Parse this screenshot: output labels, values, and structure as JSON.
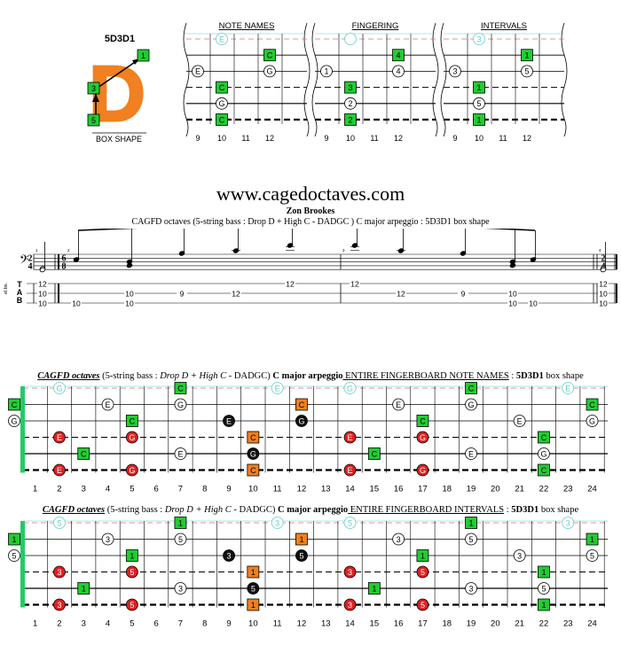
{
  "shape": {
    "name": "5D3D1",
    "letter": "D",
    "caption": "BOX SHAPE",
    "markers": [
      "1",
      "3",
      "5"
    ]
  },
  "top_diagrams": [
    {
      "title": "NOTE NAMES",
      "frets": [
        "9",
        "10",
        "11",
        "12"
      ],
      "dots": [
        {
          "string": 0,
          "fret": 10,
          "label": "E",
          "style": "ghost"
        },
        {
          "string": 1,
          "fret": 12,
          "label": "C",
          "style": "green"
        },
        {
          "string": 2,
          "fret": 9,
          "label": "E",
          "style": "white"
        },
        {
          "string": 2,
          "fret": 12,
          "label": "G",
          "style": "white"
        },
        {
          "string": 3,
          "fret": 10,
          "label": "C",
          "style": "green"
        },
        {
          "string": 4,
          "fret": 10,
          "label": "G",
          "style": "white"
        },
        {
          "string": 5,
          "fret": 10,
          "label": "C",
          "style": "green"
        }
      ]
    },
    {
      "title": "FINGERING",
      "frets": [
        "9",
        "10",
        "11",
        "12"
      ],
      "dots": [
        {
          "string": 0,
          "fret": 10,
          "label": "",
          "style": "ghost"
        },
        {
          "string": 1,
          "fret": 12,
          "label": "4",
          "style": "green"
        },
        {
          "string": 2,
          "fret": 9,
          "label": "1",
          "style": "white"
        },
        {
          "string": 2,
          "fret": 12,
          "label": "4",
          "style": "white"
        },
        {
          "string": 3,
          "fret": 10,
          "label": "3",
          "style": "green"
        },
        {
          "string": 4,
          "fret": 10,
          "label": "2",
          "style": "white"
        },
        {
          "string": 5,
          "fret": 10,
          "label": "2",
          "style": "green"
        }
      ]
    },
    {
      "title": "INTERVALS",
      "frets": [
        "9",
        "10",
        "11",
        "12"
      ],
      "dots": [
        {
          "string": 0,
          "fret": 10,
          "label": "3",
          "style": "ghost"
        },
        {
          "string": 1,
          "fret": 12,
          "label": "1",
          "style": "green"
        },
        {
          "string": 2,
          "fret": 9,
          "label": "3",
          "style": "white"
        },
        {
          "string": 2,
          "fret": 12,
          "label": "5",
          "style": "white"
        },
        {
          "string": 3,
          "fret": 10,
          "label": "1",
          "style": "green"
        },
        {
          "string": 4,
          "fret": 10,
          "label": "5",
          "style": "white"
        },
        {
          "string": 5,
          "fret": 10,
          "label": "1",
          "style": "green"
        }
      ]
    }
  ],
  "website": "www.cagedoctaves.com",
  "author": "Zon Brookes",
  "subtitle": "CAGFD octaves (5-string bass : Drop D + High C - DADGC )  C major arpeggio : 5D3D1 box shape",
  "score": {
    "time_sig_start": [
      "2",
      "4"
    ],
    "time_sig_main": [
      "6",
      "8"
    ],
    "time_sig_end": [
      "2",
      "4"
    ],
    "tab_label": [
      "T",
      "A",
      "B"
    ],
    "clef_label": "el.bs.",
    "measure_numbers": [
      "1",
      "2",
      "3",
      "4"
    ],
    "tab_columns": [
      [
        "12",
        "10",
        "10"
      ],
      [
        "10"
      ],
      [
        "10",
        "10"
      ],
      [
        "9"
      ],
      [
        "12"
      ],
      [
        "12"
      ],
      [
        "12"
      ],
      [
        "12"
      ],
      [
        "9"
      ],
      [
        "10",
        "10"
      ],
      [
        "10"
      ],
      [
        "12",
        "10",
        "10"
      ]
    ]
  },
  "fretboard_notes": {
    "title_bold_italic": "CAGFD octaves",
    "title_plain_1": " (5-string bass : ",
    "title_italic": "Drop D + High C",
    "title_plain_2": " - DADGC) ",
    "title_bold_1": "C major arpeggio",
    "title_underlined": " ENTIRE FINGERBOARD NOTE NAMES",
    "title_plain_3": " : ",
    "title_bold_2": "5D3D1",
    "title_plain_4": " box shape",
    "open": [
      {
        "string": 0,
        "label": "",
        "style": "none"
      },
      {
        "string": 1,
        "label": "C",
        "style": "green"
      },
      {
        "string": 2,
        "label": "G",
        "style": "white"
      }
    ],
    "dots": [
      {
        "string": 0,
        "fret": 2,
        "label": "G",
        "style": "ghost"
      },
      {
        "string": 0,
        "fret": 7,
        "label": "C",
        "style": "green"
      },
      {
        "string": 0,
        "fret": 11,
        "label": "E",
        "style": "ghost"
      },
      {
        "string": 0,
        "fret": 14,
        "label": "G",
        "style": "ghost"
      },
      {
        "string": 0,
        "fret": 19,
        "label": "C",
        "style": "green"
      },
      {
        "string": 0,
        "fret": 23,
        "label": "E",
        "style": "ghost"
      },
      {
        "string": 1,
        "fret": 4,
        "label": "E",
        "style": "white"
      },
      {
        "string": 1,
        "fret": 7,
        "label": "G",
        "style": "white"
      },
      {
        "string": 1,
        "fret": 12,
        "label": "C",
        "style": "orange"
      },
      {
        "string": 1,
        "fret": 16,
        "label": "E",
        "style": "white"
      },
      {
        "string": 1,
        "fret": 19,
        "label": "G",
        "style": "white"
      },
      {
        "string": 1,
        "fret": 24,
        "label": "C",
        "style": "green"
      },
      {
        "string": 2,
        "fret": 5,
        "label": "C",
        "style": "green"
      },
      {
        "string": 2,
        "fret": 9,
        "label": "E",
        "style": "black"
      },
      {
        "string": 2,
        "fret": 12,
        "label": "G",
        "style": "black"
      },
      {
        "string": 2,
        "fret": 17,
        "label": "C",
        "style": "green"
      },
      {
        "string": 2,
        "fret": 21,
        "label": "E",
        "style": "white"
      },
      {
        "string": 2,
        "fret": 24,
        "label": "G",
        "style": "white"
      },
      {
        "string": 3,
        "fret": 2,
        "label": "E",
        "style": "red"
      },
      {
        "string": 3,
        "fret": 5,
        "label": "G",
        "style": "red"
      },
      {
        "string": 3,
        "fret": 10,
        "label": "C",
        "style": "orange"
      },
      {
        "string": 3,
        "fret": 14,
        "label": "E",
        "style": "red"
      },
      {
        "string": 3,
        "fret": 17,
        "label": "G",
        "style": "red"
      },
      {
        "string": 3,
        "fret": 22,
        "label": "C",
        "style": "green"
      },
      {
        "string": 4,
        "fret": 3,
        "label": "C",
        "style": "green"
      },
      {
        "string": 4,
        "fret": 7,
        "label": "E",
        "style": "white"
      },
      {
        "string": 4,
        "fret": 10,
        "label": "G",
        "style": "black"
      },
      {
        "string": 4,
        "fret": 15,
        "label": "C",
        "style": "green"
      },
      {
        "string": 4,
        "fret": 19,
        "label": "E",
        "style": "white"
      },
      {
        "string": 4,
        "fret": 22,
        "label": "G",
        "style": "white"
      },
      {
        "string": 5,
        "fret": 2,
        "label": "E",
        "style": "red"
      },
      {
        "string": 5,
        "fret": 5,
        "label": "G",
        "style": "red"
      },
      {
        "string": 5,
        "fret": 10,
        "label": "C",
        "style": "orange"
      },
      {
        "string": 5,
        "fret": 14,
        "label": "E",
        "style": "red"
      },
      {
        "string": 5,
        "fret": 17,
        "label": "G",
        "style": "red"
      },
      {
        "string": 5,
        "fret": 22,
        "label": "C",
        "style": "green"
      }
    ]
  },
  "fretboard_intervals": {
    "title_bold_italic": "CAGFD octaves",
    "title_plain_1": " (5-string bass : ",
    "title_italic": "Drop D + High C",
    "title_plain_2": " - DADGC) ",
    "title_bold_1": "C major arpeggio",
    "title_underlined": " ENTIRE FINGERBOARD INTERVALS",
    "title_plain_3": " : ",
    "title_bold_2": "5D3D1",
    "title_plain_4": " box shape",
    "open": [
      {
        "string": 0,
        "label": "",
        "style": "none"
      },
      {
        "string": 1,
        "label": "1",
        "style": "green"
      },
      {
        "string": 2,
        "label": "5",
        "style": "white"
      }
    ],
    "dots": [
      {
        "string": 0,
        "fret": 2,
        "label": "5",
        "style": "ghost"
      },
      {
        "string": 0,
        "fret": 7,
        "label": "1",
        "style": "green"
      },
      {
        "string": 0,
        "fret": 11,
        "label": "3",
        "style": "ghost"
      },
      {
        "string": 0,
        "fret": 14,
        "label": "5",
        "style": "ghost"
      },
      {
        "string": 0,
        "fret": 19,
        "label": "1",
        "style": "green"
      },
      {
        "string": 0,
        "fret": 23,
        "label": "3",
        "style": "ghost"
      },
      {
        "string": 1,
        "fret": 4,
        "label": "3",
        "style": "white"
      },
      {
        "string": 1,
        "fret": 7,
        "label": "5",
        "style": "white"
      },
      {
        "string": 1,
        "fret": 12,
        "label": "1",
        "style": "orange"
      },
      {
        "string": 1,
        "fret": 16,
        "label": "3",
        "style": "white"
      },
      {
        "string": 1,
        "fret": 19,
        "label": "5",
        "style": "white"
      },
      {
        "string": 1,
        "fret": 24,
        "label": "1",
        "style": "green"
      },
      {
        "string": 2,
        "fret": 5,
        "label": "1",
        "style": "green"
      },
      {
        "string": 2,
        "fret": 9,
        "label": "3",
        "style": "black"
      },
      {
        "string": 2,
        "fret": 12,
        "label": "5",
        "style": "black"
      },
      {
        "string": 2,
        "fret": 17,
        "label": "1",
        "style": "green"
      },
      {
        "string": 2,
        "fret": 21,
        "label": "3",
        "style": "white"
      },
      {
        "string": 2,
        "fret": 24,
        "label": "5",
        "style": "white"
      },
      {
        "string": 3,
        "fret": 2,
        "label": "3",
        "style": "red"
      },
      {
        "string": 3,
        "fret": 5,
        "label": "5",
        "style": "red"
      },
      {
        "string": 3,
        "fret": 10,
        "label": "1",
        "style": "orange"
      },
      {
        "string": 3,
        "fret": 14,
        "label": "3",
        "style": "red"
      },
      {
        "string": 3,
        "fret": 17,
        "label": "5",
        "style": "red"
      },
      {
        "string": 3,
        "fret": 22,
        "label": "1",
        "style": "green"
      },
      {
        "string": 4,
        "fret": 3,
        "label": "1",
        "style": "green"
      },
      {
        "string": 4,
        "fret": 7,
        "label": "3",
        "style": "white"
      },
      {
        "string": 4,
        "fret": 10,
        "label": "5",
        "style": "black"
      },
      {
        "string": 4,
        "fret": 15,
        "label": "1",
        "style": "green"
      },
      {
        "string": 4,
        "fret": 19,
        "label": "3",
        "style": "white"
      },
      {
        "string": 4,
        "fret": 22,
        "label": "5",
        "style": "white"
      },
      {
        "string": 5,
        "fret": 2,
        "label": "3",
        "style": "red"
      },
      {
        "string": 5,
        "fret": 5,
        "label": "5",
        "style": "red"
      },
      {
        "string": 5,
        "fret": 10,
        "label": "1",
        "style": "orange"
      },
      {
        "string": 5,
        "fret": 14,
        "label": "3",
        "style": "red"
      },
      {
        "string": 5,
        "fret": 17,
        "label": "5",
        "style": "red"
      },
      {
        "string": 5,
        "fret": 22,
        "label": "1",
        "style": "green"
      }
    ]
  },
  "fret_numbers": [
    "1",
    "2",
    "3",
    "4",
    "5",
    "6",
    "7",
    "8",
    "9",
    "10",
    "11",
    "12",
    "13",
    "14",
    "15",
    "16",
    "17",
    "18",
    "19",
    "20",
    "21",
    "22",
    "23",
    "24"
  ],
  "colors": {
    "green": "#22cc33",
    "orange": "#f08020",
    "red": "#e02020",
    "black": "#111111",
    "ghost": "#66cccc",
    "nut": "#22cc66",
    "dashed_red": "#e07070"
  }
}
